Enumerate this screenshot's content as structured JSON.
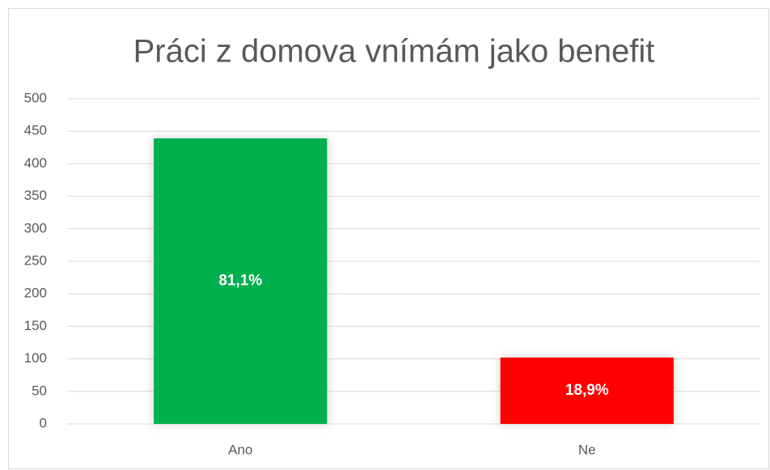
{
  "chart_data": {
    "type": "bar",
    "title": "Práci z domova vnímám jako benefit",
    "categories": [
      "Ano",
      "Ne"
    ],
    "values": [
      439,
      102
    ],
    "labels": [
      "81,1%",
      "18,9%"
    ],
    "colors": [
      "#00b050",
      "#ff0000"
    ],
    "ylim": [
      0,
      500
    ],
    "yticks": [
      0,
      50,
      100,
      150,
      200,
      250,
      300,
      350,
      400,
      450,
      500
    ],
    "grid": true
  }
}
